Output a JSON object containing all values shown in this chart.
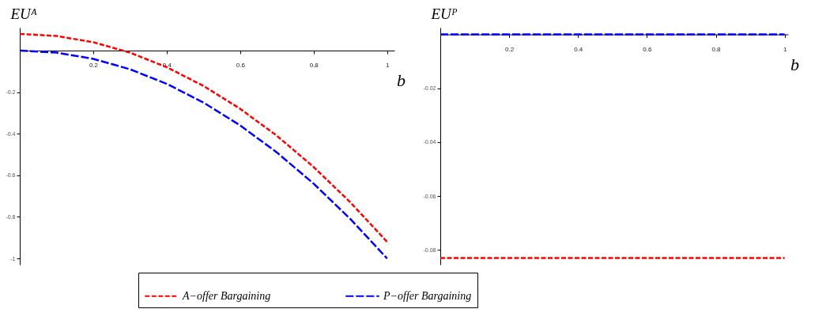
{
  "chart_data": [
    {
      "type": "line",
      "xlabel": "b",
      "ylabel": "EUᴬ",
      "xlim": [
        0,
        1.02
      ],
      "ylim": [
        -1.03,
        0.11
      ],
      "xticks": [
        0.2,
        0.4,
        0.6,
        0.8,
        1
      ],
      "yticks": [
        -1,
        -0.8,
        -0.6,
        -0.4,
        -0.2
      ],
      "legend": "bottom",
      "line_style": "dashed",
      "x": [
        0,
        0.1,
        0.2,
        0.3,
        0.4,
        0.5,
        0.6,
        0.7,
        0.8,
        0.9,
        1
      ],
      "series": [
        {
          "name": "A−offer Bargaining",
          "color": "#ff0000",
          "values": [
            0.08,
            0.07,
            0.04,
            -0.01,
            -0.08,
            -0.17,
            -0.28,
            -0.41,
            -0.56,
            -0.73,
            -0.92
          ]
        },
        {
          "name": "P−offer Bargaining",
          "color": "#0000ff",
          "values": [
            0,
            -0.01,
            -0.04,
            -0.09,
            -0.16,
            -0.25,
            -0.36,
            -0.49,
            -0.64,
            -0.81,
            -1
          ]
        }
      ]
    },
    {
      "type": "line",
      "xlabel": "b",
      "ylabel": "EUᴾ",
      "xlim": [
        0,
        1.01
      ],
      "ylim": [
        -0.0855,
        0.0025
      ],
      "xticks": [
        0.2,
        0.4,
        0.6,
        0.8,
        1
      ],
      "yticks": [
        -0.08,
        -0.06,
        -0.04,
        -0.02
      ],
      "line_style": "dashed",
      "x": [
        0,
        1
      ],
      "series": [
        {
          "color": "#ff0000",
          "values": [
            -0.083,
            -0.083
          ]
        },
        {
          "color": "#0000ff",
          "values": [
            0,
            0
          ]
        }
      ]
    }
  ]
}
